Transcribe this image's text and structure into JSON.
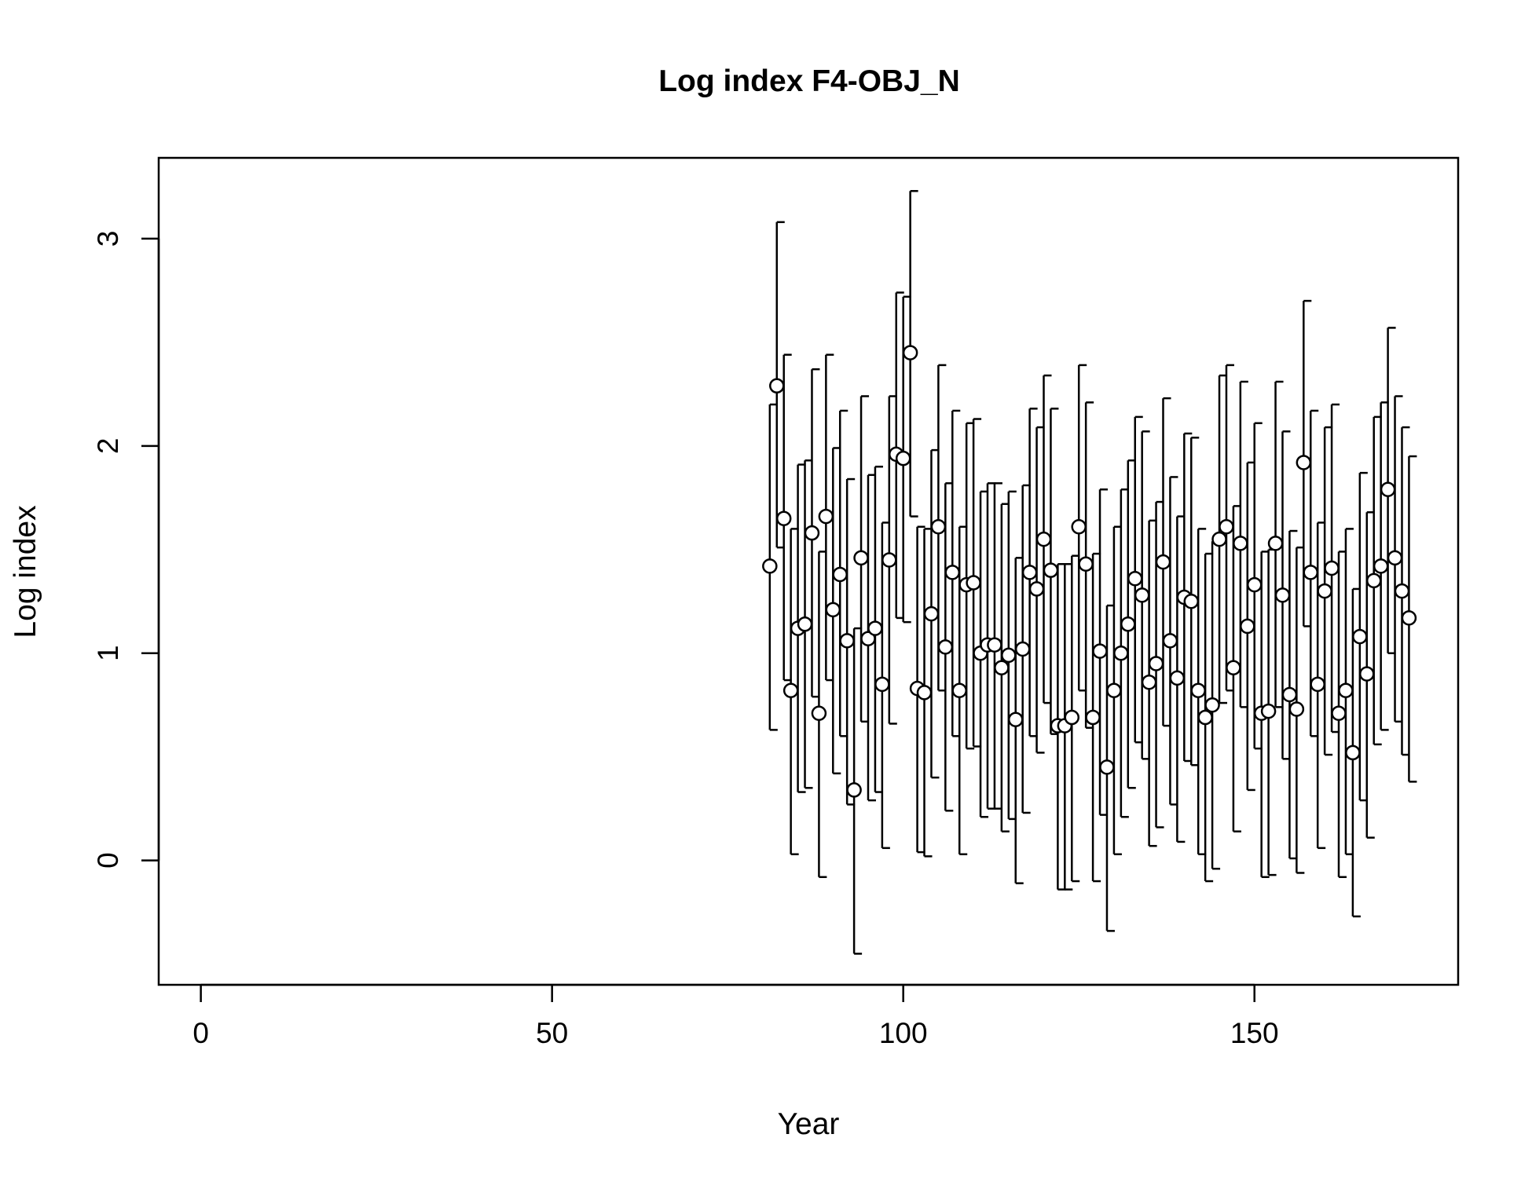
{
  "chart_data": {
    "type": "scatter",
    "title": "Log index F4-OBJ_N",
    "xlabel": "Year",
    "ylabel": "Log index",
    "xlim": [
      -6,
      179
    ],
    "ylim": [
      -0.6,
      3.39
    ],
    "x_ticks": [
      0,
      50,
      100,
      150
    ],
    "y_ticks": [
      0,
      1,
      2,
      3
    ],
    "x_tick_labels": [
      "0",
      "50",
      "100",
      "150"
    ],
    "y_tick_labels": [
      "0",
      "1",
      "2",
      "3"
    ],
    "grid": false,
    "legend": "none",
    "marker": "open circle with vertical error bars",
    "series": [
      {
        "x": [
          81,
          82,
          83,
          84,
          85,
          86,
          87,
          88,
          89,
          90,
          91,
          92,
          93,
          94,
          95,
          96,
          97,
          98,
          99,
          100,
          101,
          102,
          103,
          104,
          105,
          106,
          107,
          108,
          109,
          110,
          111,
          112,
          113,
          114,
          115,
          116,
          117,
          118,
          119,
          120,
          121,
          122,
          123,
          124,
          125,
          126,
          127,
          128,
          129,
          130,
          131,
          132,
          133,
          134,
          135,
          136,
          137,
          138,
          139,
          140,
          141,
          142,
          143,
          144,
          145,
          146,
          147,
          148,
          149,
          150,
          151,
          152,
          153,
          154,
          155,
          156,
          157,
          158,
          159,
          160,
          161,
          162,
          163,
          164,
          165,
          166,
          167,
          168,
          169,
          170,
          171,
          172
        ],
        "y": [
          1.42,
          2.29,
          1.65,
          0.82,
          1.12,
          1.14,
          1.58,
          0.71,
          1.66,
          1.21,
          1.38,
          1.06,
          0.34,
          1.46,
          1.07,
          1.12,
          0.85,
          1.45,
          1.96,
          1.94,
          2.45,
          0.83,
          0.81,
          1.19,
          1.61,
          1.03,
          1.39,
          0.82,
          1.33,
          1.34,
          1.0,
          1.04,
          1.04,
          0.93,
          0.99,
          0.68,
          1.02,
          1.39,
          1.31,
          1.55,
          1.4,
          0.65,
          0.65,
          0.69,
          1.61,
          1.43,
          0.69,
          1.01,
          0.45,
          0.82,
          1.0,
          1.14,
          1.36,
          1.28,
          0.86,
          0.95,
          1.44,
          1.06,
          0.88,
          1.27,
          1.25,
          0.82,
          0.69,
          0.75,
          1.55,
          1.61,
          0.93,
          1.53,
          1.13,
          1.33,
          0.71,
          0.72,
          1.53,
          1.28,
          0.8,
          0.73,
          1.92,
          1.39,
          0.85,
          1.3,
          1.41,
          0.71,
          0.82,
          0.52,
          1.08,
          0.9,
          1.35,
          1.42,
          1.79,
          1.46,
          1.3,
          1.17
        ],
        "lower": [
          0.63,
          1.51,
          0.87,
          0.03,
          0.33,
          0.35,
          0.79,
          -0.08,
          0.87,
          0.42,
          0.6,
          0.27,
          -0.45,
          0.67,
          0.29,
          0.33,
          0.06,
          0.66,
          1.17,
          1.15,
          1.66,
          0.04,
          0.02,
          0.4,
          0.82,
          0.24,
          0.6,
          0.03,
          0.54,
          0.55,
          0.21,
          0.25,
          0.25,
          0.14,
          0.2,
          -0.11,
          0.23,
          0.6,
          0.52,
          0.76,
          0.61,
          -0.14,
          -0.14,
          -0.1,
          0.82,
          0.64,
          -0.1,
          0.22,
          -0.34,
          0.03,
          0.21,
          0.35,
          0.57,
          0.49,
          0.07,
          0.16,
          0.65,
          0.27,
          0.09,
          0.48,
          0.46,
          0.03,
          -0.1,
          -0.04,
          0.76,
          0.82,
          0.14,
          0.74,
          0.34,
          0.54,
          -0.08,
          -0.07,
          0.74,
          0.49,
          0.01,
          -0.06,
          1.13,
          0.6,
          0.06,
          0.51,
          0.62,
          -0.08,
          0.03,
          -0.27,
          0.29,
          0.11,
          0.56,
          0.63,
          1.0,
          0.67,
          0.51,
          0.38
        ],
        "upper": [
          2.2,
          3.08,
          2.44,
          1.6,
          1.91,
          1.93,
          2.37,
          1.49,
          2.44,
          1.99,
          2.17,
          1.84,
          1.12,
          2.24,
          1.86,
          1.9,
          1.63,
          2.24,
          2.74,
          2.72,
          3.23,
          1.61,
          1.6,
          1.98,
          2.39,
          1.82,
          2.17,
          1.61,
          2.11,
          2.13,
          1.78,
          1.82,
          1.82,
          1.72,
          1.78,
          1.46,
          1.81,
          2.18,
          2.09,
          2.34,
          2.18,
          1.43,
          1.43,
          1.47,
          2.39,
          2.21,
          1.48,
          1.79,
          1.23,
          1.61,
          1.79,
          1.93,
          2.14,
          2.07,
          1.64,
          1.73,
          2.23,
          1.85,
          1.66,
          2.06,
          2.04,
          1.6,
          1.48,
          1.54,
          2.34,
          2.39,
          1.71,
          2.31,
          1.92,
          2.11,
          1.49,
          1.5,
          2.31,
          2.07,
          1.59,
          1.51,
          2.7,
          2.17,
          1.63,
          2.09,
          2.2,
          1.49,
          1.6,
          1.31,
          1.87,
          1.68,
          2.14,
          2.21,
          2.57,
          2.24,
          2.09,
          1.95
        ]
      }
    ]
  }
}
